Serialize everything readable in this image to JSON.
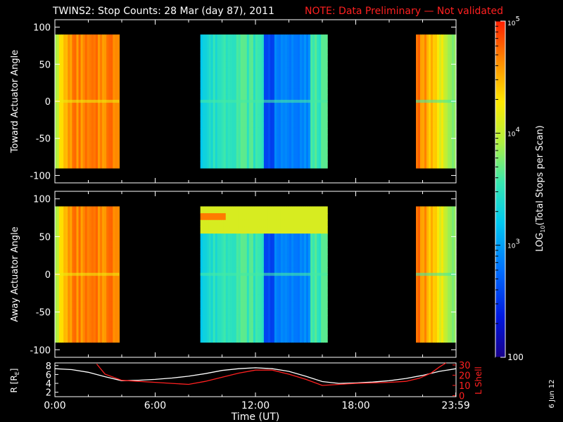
{
  "header": {
    "title": "TWINS2: Stop Counts: 28 Mar (day  87), 2011",
    "note": "NOTE: Data Preliminary — Not validated"
  },
  "colorbar": {
    "label": "LOG10(Total Stops per Scan)",
    "label_prefix": "LOG",
    "label_sub": "10",
    "label_suffix": "(Total Stops per Scan)",
    "ticks": [
      {
        "value": 100000,
        "base": "10",
        "exp": "5"
      },
      {
        "value": 10000,
        "base": "10",
        "exp": "4"
      },
      {
        "value": 1000,
        "base": "10",
        "exp": "3"
      },
      {
        "value": 100,
        "text": "100"
      }
    ],
    "range": [
      100,
      100000
    ],
    "scale": "log"
  },
  "footer": {
    "date_stamp": "6 Jun 12"
  },
  "chart_data": [
    {
      "type": "heatmap",
      "panel": "toward",
      "ylabel": "Toward Actuator Angle",
      "ylim": [
        -110,
        110
      ],
      "yticks": [
        100,
        50,
        0,
        -50,
        -100
      ],
      "xlim_hours": [
        0,
        24
      ],
      "angle_range": [
        -90,
        90
      ],
      "segments": [
        {
          "start_hr": 0.0,
          "end_hr": 3.85,
          "profile": "warm",
          "level_log": 4.6
        },
        {
          "start_hr": 8.7,
          "end_hr": 16.3,
          "profile": "cool",
          "level_log": 3.2
        },
        {
          "start_hr": 21.6,
          "end_hr": 24.0,
          "profile": "warm_right",
          "level_log": 4.4
        }
      ]
    },
    {
      "type": "heatmap",
      "panel": "away",
      "ylabel": "Away Actuator Angle",
      "ylim": [
        -110,
        110
      ],
      "yticks": [
        100,
        50,
        0,
        -50,
        -100
      ],
      "xlim_hours": [
        0,
        24
      ],
      "angle_range": [
        -90,
        90
      ],
      "segments": [
        {
          "start_hr": 0.0,
          "end_hr": 3.85,
          "profile": "warm",
          "level_log": 4.6
        },
        {
          "start_hr": 8.7,
          "end_hr": 16.3,
          "profile": "cool_band",
          "level_log": 3.2
        },
        {
          "start_hr": 21.6,
          "end_hr": 24.0,
          "profile": "warm_right",
          "level_log": 4.4
        }
      ]
    },
    {
      "type": "line",
      "panel": "orbit",
      "xlabel": "Time (UT)",
      "xticks": [
        "0:00",
        "6:00",
        "12:00",
        "18:00",
        "23:59"
      ],
      "xlim_hours": [
        0,
        24
      ],
      "ylabel_left": "R [RE]",
      "ylabel_left_prefix": "R [R",
      "ylabel_left_sub": "E",
      "ylabel_left_suffix": "]",
      "ylabel_right": "L Shell",
      "yleft_ticks": [
        "8",
        "6",
        "4",
        "2"
      ],
      "yleft_lim": [
        1,
        8.6
      ],
      "yright_ticks": [
        "30",
        "20",
        "10",
        "0"
      ],
      "yright_lim": [
        -1,
        32
      ],
      "series": [
        {
          "color": "#ffffff",
          "axis": "left",
          "x": [
            0,
            1,
            2,
            3,
            4,
            5,
            6,
            7,
            8,
            9,
            10,
            11,
            12,
            13,
            14,
            15,
            16,
            17,
            18,
            19,
            20,
            21,
            22,
            23,
            24
          ],
          "y": [
            7.3,
            7.1,
            6.5,
            5.5,
            4.6,
            4.7,
            4.9,
            5.2,
            5.6,
            6.2,
            6.9,
            7.3,
            7.5,
            7.3,
            6.7,
            5.6,
            4.4,
            4.0,
            4.1,
            4.3,
            4.6,
            5.1,
            5.8,
            6.7,
            7.3
          ]
        },
        {
          "color": "#ff2020",
          "axis": "right",
          "x": [
            2.5,
            3.0,
            4.0,
            5.0,
            6.0,
            7.0,
            8.0,
            9.0,
            10.0,
            11.0,
            12.0,
            13.0,
            14.0,
            15.0,
            16.0,
            17.0,
            18.0,
            19.0,
            20.0,
            21.0,
            21.8,
            22.5,
            23.0,
            23.4
          ],
          "y": [
            31,
            21,
            15,
            14,
            13,
            12,
            11,
            14,
            18,
            22,
            25,
            25,
            21,
            16,
            10,
            11,
            12,
            12.5,
            13,
            14,
            17,
            22,
            28,
            32
          ]
        }
      ]
    }
  ]
}
